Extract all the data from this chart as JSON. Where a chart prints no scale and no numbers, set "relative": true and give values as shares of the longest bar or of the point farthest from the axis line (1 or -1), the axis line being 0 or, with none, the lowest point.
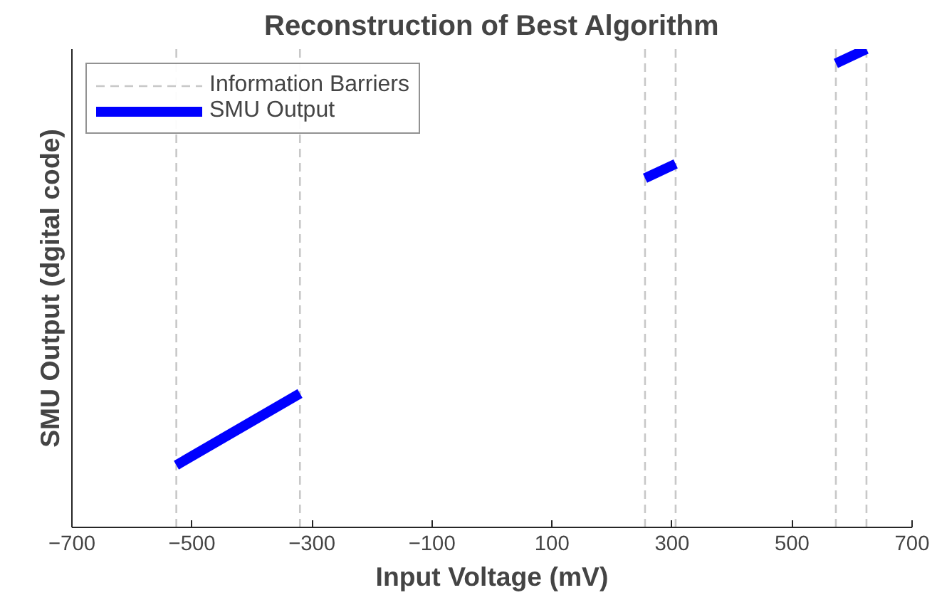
{
  "chart_data": {
    "type": "line",
    "title": "Reconstruction of Best Algorithm",
    "xlabel": "Input Voltage (mV)",
    "ylabel": "SMU Output (dgital code)",
    "relative": true,
    "xlim": [
      -700,
      700
    ],
    "xticks": [
      -700,
      -500,
      -300,
      -100,
      100,
      300,
      500,
      700
    ],
    "x": [
      -526,
      -320,
      null,
      255,
      306,
      null,
      573,
      624
    ],
    "series": [
      {
        "name": "SMU Output",
        "color": "#0000ff",
        "values": [
          0.13,
          0.28,
          null,
          0.73,
          0.76,
          null,
          0.97,
          1
        ]
      }
    ],
    "ref_lines": [
      {
        "axis": "x",
        "value": -526,
        "label": "Information Barriers",
        "color": "#c8c8c8",
        "line_style": "dashed"
      },
      {
        "axis": "x",
        "value": -320,
        "label": null,
        "color": "#c8c8c8",
        "line_style": "dashed"
      },
      {
        "axis": "x",
        "value": 255,
        "label": null,
        "color": "#c8c8c8",
        "line_style": "dashed"
      },
      {
        "axis": "x",
        "value": 306,
        "label": null,
        "color": "#c8c8c8",
        "line_style": "dashed"
      },
      {
        "axis": "x",
        "value": 573,
        "label": null,
        "color": "#c8c8c8",
        "line_style": "dashed"
      },
      {
        "axis": "x",
        "value": 624,
        "label": null,
        "color": "#c8c8c8",
        "line_style": "dashed"
      }
    ],
    "legend": "top left",
    "grid": false
  }
}
